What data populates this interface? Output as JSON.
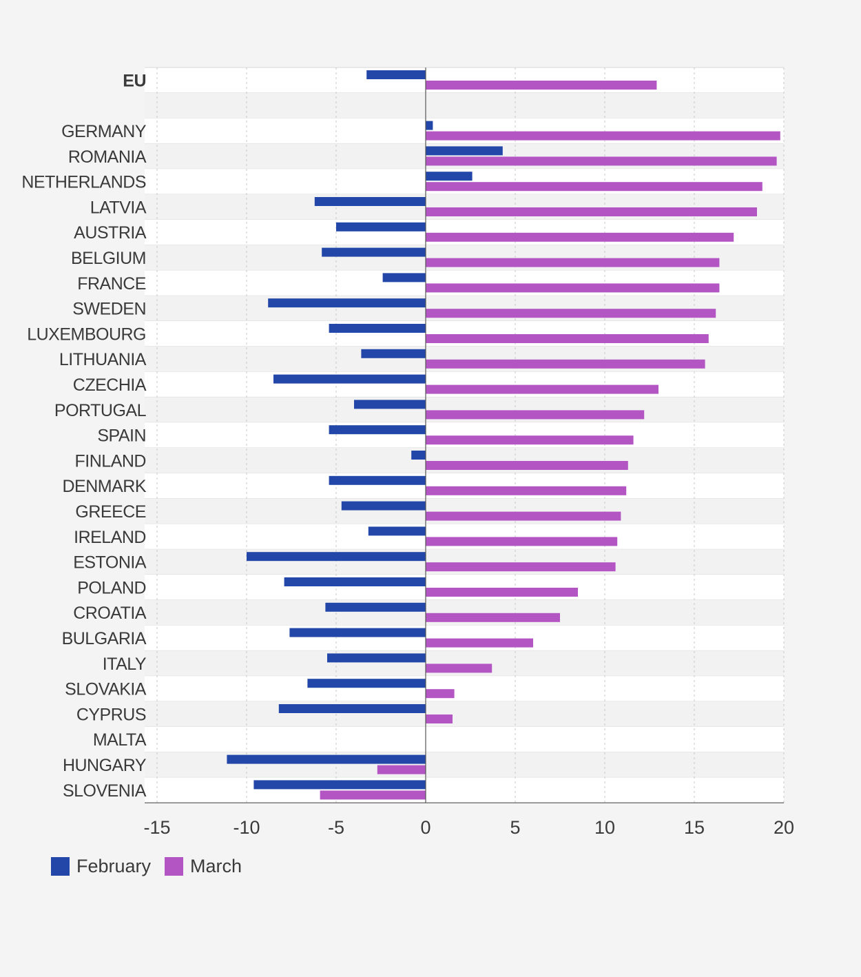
{
  "chart_data": {
    "type": "bar",
    "orientation": "horizontal",
    "title": "",
    "xlabel": "",
    "ylabel": "",
    "xlim": [
      -15,
      20
    ],
    "xticks": [
      -15,
      -10,
      -5,
      0,
      5,
      10,
      15,
      20
    ],
    "xtick_labels": [
      "-15",
      "-10",
      "-5",
      "0",
      "5",
      "10",
      "15",
      "20"
    ],
    "grid": "vertical dashed",
    "categories": [
      "EU",
      "",
      "GERMANY",
      "ROMANIA",
      "NETHERLANDS",
      "LATVIA",
      "AUSTRIA",
      "BELGIUM",
      "FRANCE",
      "SWEDEN",
      "LUXEMBOURG",
      "LITHUANIA",
      "CZECHIA",
      "PORTUGAL",
      "SPAIN",
      "FINLAND",
      "DENMARK",
      "GREECE",
      "IRELAND",
      "ESTONIA",
      "POLAND",
      "CROATIA",
      "BULGARIA",
      "ITALY",
      "SLOVAKIA",
      "CYPRUS",
      "MALTA",
      "HUNGARY",
      "SLOVENIA"
    ],
    "series": [
      {
        "name": "February",
        "color": "#2347a8",
        "values": [
          -3.3,
          null,
          0.4,
          4.3,
          2.6,
          -6.2,
          -5.0,
          -5.8,
          -2.4,
          -8.8,
          -5.4,
          -3.6,
          -8.5,
          -4.0,
          -5.4,
          -0.8,
          -5.4,
          -4.7,
          -3.2,
          -10.0,
          -7.9,
          -5.6,
          -7.6,
          -5.5,
          -6.6,
          -8.2,
          null,
          -11.1,
          -9.6
        ]
      },
      {
        "name": "March",
        "color": "#b356c4",
        "values": [
          12.9,
          null,
          19.8,
          19.6,
          18.8,
          18.5,
          17.2,
          16.4,
          16.4,
          16.2,
          15.8,
          15.6,
          13.0,
          12.2,
          11.6,
          11.3,
          11.2,
          10.9,
          10.7,
          10.6,
          8.5,
          7.5,
          6.0,
          3.7,
          1.6,
          1.5,
          null,
          -2.7,
          -5.9
        ]
      }
    ],
    "legend_position": "bottom-left"
  }
}
